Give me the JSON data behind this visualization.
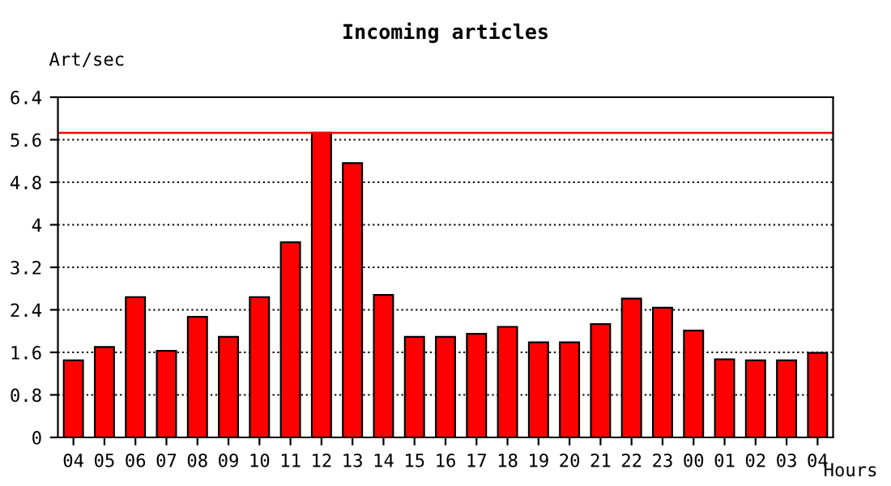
{
  "chart_data": {
    "type": "bar",
    "title": "Incoming articles",
    "ylabel": "Art/sec",
    "xlabel": "Hours",
    "categories": [
      "04",
      "05",
      "06",
      "07",
      "08",
      "09",
      "10",
      "11",
      "12",
      "13",
      "14",
      "15",
      "16",
      "17",
      "18",
      "19",
      "20",
      "21",
      "22",
      "23",
      "00",
      "01",
      "02",
      "03",
      "04"
    ],
    "values": [
      1.45,
      1.7,
      2.64,
      1.63,
      2.27,
      1.89,
      2.64,
      3.67,
      5.73,
      5.16,
      2.68,
      1.89,
      1.89,
      1.95,
      2.08,
      1.79,
      1.79,
      2.13,
      2.61,
      2.44,
      2.01,
      1.47,
      1.45,
      1.45,
      1.59
    ],
    "color": "#ff0000",
    "ylim": [
      0,
      6.4
    ],
    "yticks": [
      0,
      0.8,
      1.6,
      2.4,
      3.2,
      4,
      4.8,
      5.6,
      6.4
    ],
    "grid": "y",
    "line_style": "dotted",
    "ref_lines": [
      {
        "axis": "y",
        "value": 5.73,
        "color": "#ff0000"
      }
    ]
  }
}
